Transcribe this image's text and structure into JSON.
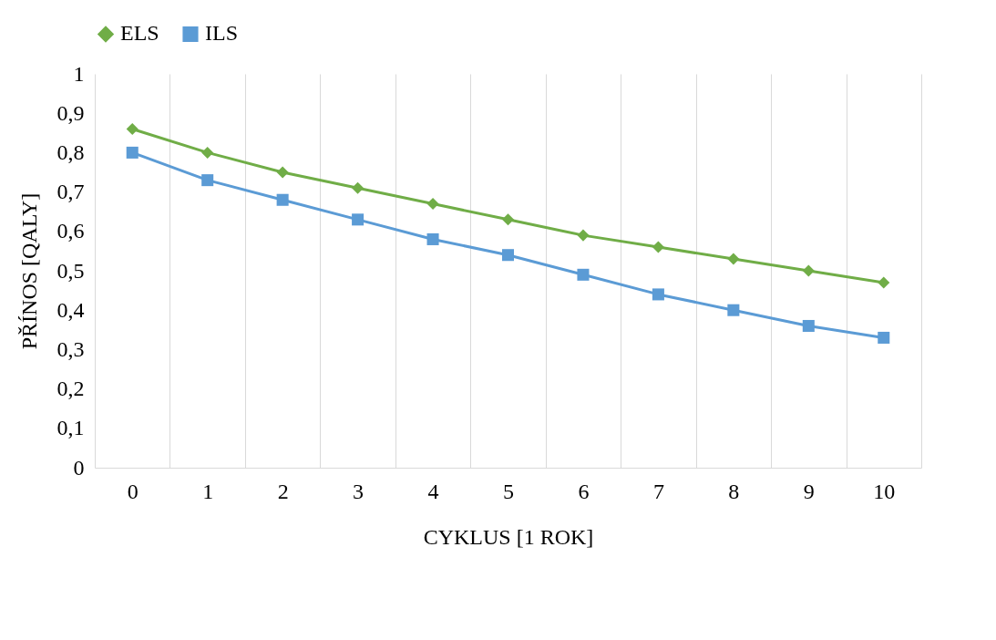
{
  "chart_data": {
    "type": "line",
    "xlabel": "CYKLUS [1 ROK]",
    "ylabel": "PŘÍNOS [QALY]",
    "categories": [
      "0",
      "1",
      "2",
      "3",
      "4",
      "5",
      "6",
      "7",
      "8",
      "9",
      "10"
    ],
    "series": [
      {
        "name": "ELS",
        "color": "#70ad47",
        "marker": "diamond",
        "values": [
          0.86,
          0.8,
          0.75,
          0.71,
          0.67,
          0.63,
          0.59,
          0.56,
          0.53,
          0.5,
          0.47
        ]
      },
      {
        "name": "ILS",
        "color": "#5b9bd5",
        "marker": "square",
        "values": [
          0.8,
          0.73,
          0.68,
          0.63,
          0.58,
          0.54,
          0.49,
          0.44,
          0.4,
          0.36,
          0.33
        ]
      }
    ],
    "ylim": [
      0,
      1
    ],
    "yticks": [
      0,
      {
        "value": 0.1,
        "label": "0,1"
      },
      {
        "value": 0.2,
        "label": "0,2"
      },
      {
        "value": 0.3,
        "label": "0,3"
      },
      {
        "value": 0.4,
        "label": "0,4"
      },
      {
        "value": 0.5,
        "label": "0,5"
      },
      {
        "value": 0.6,
        "label": "0,6"
      },
      {
        "value": 0.7,
        "label": "0,7"
      },
      {
        "value": 0.8,
        "label": "0,8"
      },
      {
        "value": 0.9,
        "label": "0,9"
      },
      1
    ],
    "grid": "x",
    "legend": "top",
    "line_style": "solid"
  }
}
